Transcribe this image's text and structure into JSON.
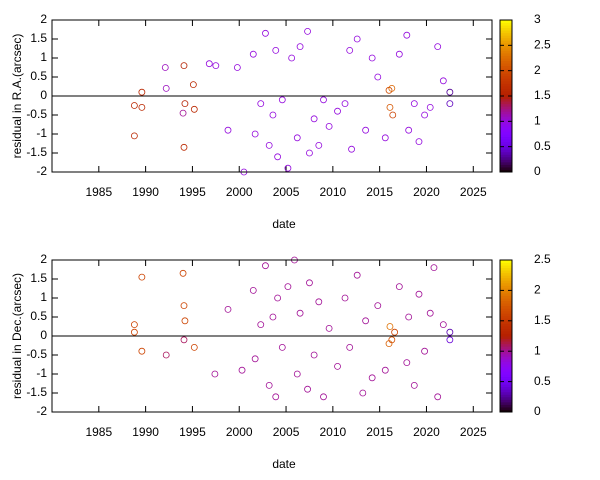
{
  "chart_data": [
    {
      "type": "scatter",
      "xlabel": "date",
      "ylabel": "residual in R.A.(arcsec)",
      "xlim": [
        1980,
        2027
      ],
      "xticks": [
        1985,
        1990,
        1995,
        2000,
        2005,
        2010,
        2015,
        2020,
        2025
      ],
      "ylim": [
        -2,
        2
      ],
      "yticks": [
        -2,
        -1.5,
        -1,
        -0.5,
        0,
        0.5,
        1,
        1.5,
        2
      ],
      "clim": [
        0,
        3
      ],
      "cticks": [
        0,
        0.5,
        1,
        1.5,
        2,
        2.5,
        3
      ],
      "palette": "gnuplot",
      "hline": 0,
      "series": [
        {
          "x": [
            1988.8,
            1988.8,
            1989.6,
            1989.6,
            1992.1,
            1992.2,
            1994.1,
            1994.2,
            1994,
            1994.1,
            1995.1,
            1995.2,
            1996.8,
            1997.5,
            1998.8,
            1999.8,
            2000.5,
            2001.5,
            2001.7,
            2002.3,
            2002.8,
            2003.2,
            2003.6,
            2003.9,
            2004.1,
            2004.6,
            2005.2,
            2005.6,
            2006.2,
            2006.5,
            2007.3,
            2007.5,
            2008,
            2008.5,
            2009,
            2009.6,
            2010.5,
            2011.3,
            2011.8,
            2012,
            2012.6,
            2013.5,
            2014.2,
            2014.8,
            2015.6,
            2016,
            2016.1,
            2016.3,
            2016.4,
            2017.1,
            2017.9,
            2018.1,
            2018.7,
            2019.2,
            2019.8,
            2020.4,
            2021.2,
            2021.8,
            2022.5,
            2022.5
          ],
          "values": [
            -0.25,
            -1.05,
            -0.3,
            0.1,
            0.75,
            0.2,
            0.8,
            -0.2,
            -0.45,
            -1.35,
            0.3,
            -0.35,
            0.85,
            0.8,
            -0.9,
            0.75,
            -2,
            1.1,
            -1.0,
            -0.2,
            1.65,
            -1.3,
            -0.5,
            1.2,
            -1.6,
            -0.1,
            -1.9,
            1.0,
            -1.1,
            1.3,
            1.7,
            -1.5,
            -0.6,
            -1.3,
            -0.1,
            -0.8,
            -0.4,
            -0.2,
            1.2,
            -1.4,
            1.5,
            -0.9,
            1.0,
            0.5,
            -1.1,
            0.15,
            -0.3,
            0.2,
            -0.5,
            1.1,
            1.6,
            -0.9,
            -0.2,
            -1.2,
            -0.5,
            -0.3,
            1.3,
            0.4,
            0.1,
            -0.2
          ],
          "color_values": [
            1.6,
            1.6,
            1.6,
            1.6,
            1.1,
            1.1,
            1.5,
            1.5,
            1.2,
            1.6,
            1.6,
            1.6,
            1,
            1,
            1,
            1,
            1,
            1,
            1,
            1,
            1,
            1,
            1,
            1,
            1,
            1,
            1,
            1,
            1,
            1,
            1,
            1,
            1,
            1,
            1,
            1,
            1,
            1,
            1,
            1,
            1,
            1,
            1,
            1,
            1,
            2,
            2.1,
            2.2,
            1.9,
            1,
            1,
            1,
            1,
            1,
            1,
            1,
            1,
            1,
            0.3,
            0.4
          ]
        }
      ]
    },
    {
      "type": "scatter",
      "xlabel": "date",
      "ylabel": "residual in Dec.(arcsec)",
      "xlim": [
        1980,
        2027
      ],
      "xticks": [
        1985,
        1990,
        1995,
        2000,
        2005,
        2010,
        2015,
        2020,
        2025
      ],
      "ylim": [
        -2,
        2
      ],
      "yticks": [
        -2,
        -1.5,
        -1,
        -0.5,
        0,
        0.5,
        1,
        1.5,
        2
      ],
      "clim": [
        0,
        2.5
      ],
      "cticks": [
        0,
        0.5,
        1,
        1.5,
        2,
        2.5
      ],
      "palette": "gnuplot",
      "hline": 0,
      "series": [
        {
          "x": [
            1988.8,
            1988.8,
            1989.6,
            1989.6,
            1992.2,
            1994,
            1994.1,
            1994.2,
            1994.1,
            1995.2,
            1997.4,
            1998.8,
            2000.3,
            2001.5,
            2001.7,
            2002.3,
            2002.8,
            2003.2,
            2003.6,
            2003.9,
            2004.1,
            2004.6,
            2005.2,
            2005.9,
            2006.2,
            2006.5,
            2007.3,
            2007.5,
            2008,
            2008.5,
            2009,
            2009.6,
            2010.5,
            2011.3,
            2011.8,
            2012.6,
            2013.2,
            2013.5,
            2014.2,
            2014.8,
            2015.6,
            2016,
            2016.1,
            2016.3,
            2016.6,
            2017.1,
            2017.9,
            2018.1,
            2018.7,
            2019.2,
            2019.8,
            2020.4,
            2020.8,
            2021.2,
            2021.8,
            2022.5,
            2022.5
          ],
          "values": [
            0.3,
            0.1,
            1.55,
            -0.4,
            -0.5,
            1.65,
            0.8,
            0.4,
            -0.1,
            -0.3,
            -1.0,
            0.7,
            -0.9,
            1.2,
            -0.6,
            0.3,
            1.85,
            -1.3,
            0.5,
            -1.6,
            1.0,
            -0.3,
            1.3,
            2.0,
            -1.0,
            0.6,
            -1.4,
            1.4,
            -0.5,
            0.9,
            -1.6,
            0.2,
            -0.8,
            1.0,
            -0.3,
            1.6,
            -1.5,
            0.4,
            -1.1,
            0.8,
            -0.9,
            -0.2,
            0.25,
            -0.1,
            0.1,
            1.3,
            -0.7,
            0.5,
            -1.3,
            1.1,
            -0.4,
            0.6,
            1.8,
            -1.6,
            0.3,
            0.1,
            -0.1
          ],
          "color_values": [
            1.6,
            1.6,
            1.6,
            1.6,
            1.1,
            1.6,
            1.6,
            1.6,
            1.1,
            1.6,
            1,
            1,
            1,
            1,
            1,
            1,
            1,
            1,
            1,
            1,
            1,
            1,
            1,
            1,
            1,
            1,
            1,
            1,
            1,
            1,
            1,
            1,
            1,
            1,
            1,
            1,
            1,
            1,
            1,
            1,
            1,
            1.8,
            1.9,
            1.7,
            1.6,
            1,
            1,
            1,
            1,
            1,
            1,
            1,
            1,
            1,
            1,
            0.3,
            0.4
          ]
        }
      ]
    }
  ]
}
